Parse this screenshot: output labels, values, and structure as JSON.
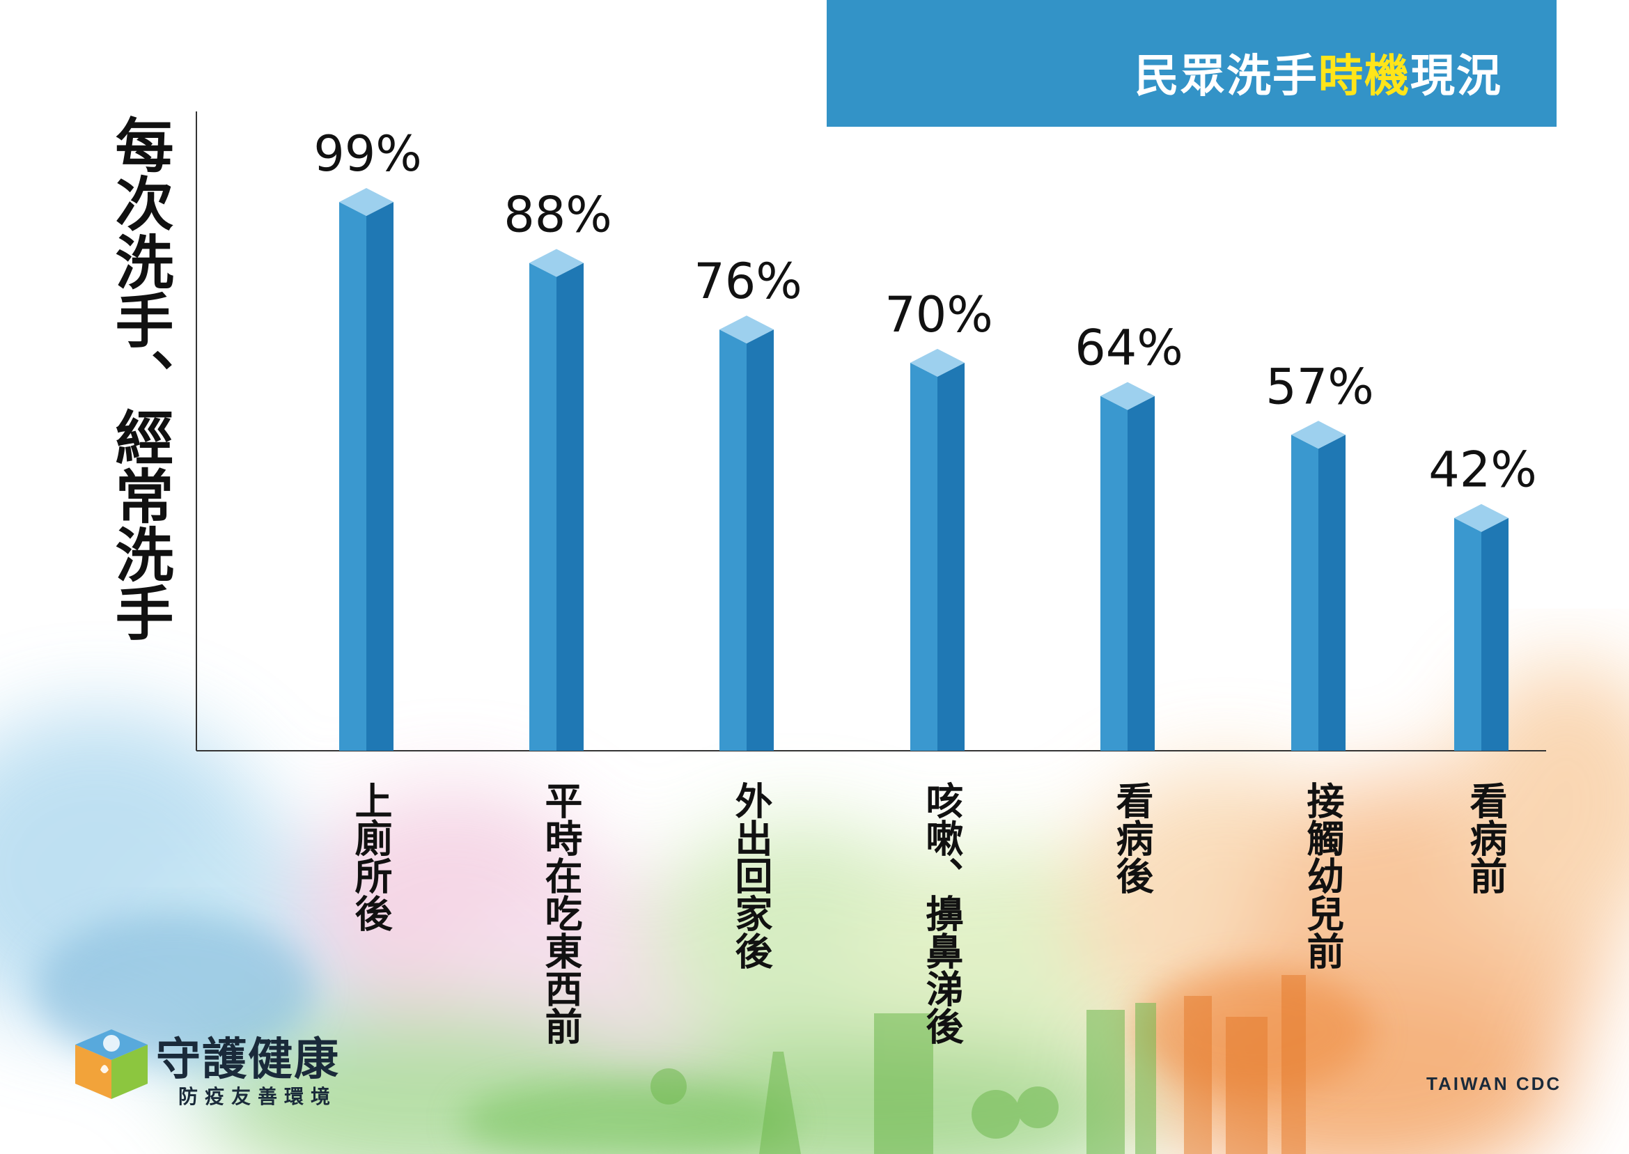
{
  "header": {
    "title_part1": "民眾洗手",
    "title_highlight": "時機",
    "title_part2": "現況",
    "bg_color": "#3393c7",
    "highlight_color": "#ffe51a"
  },
  "chart_data": {
    "type": "bar",
    "title": "民眾洗手時機現況",
    "ylabel": "每次洗手、經常洗手",
    "xlabel": "",
    "ylim": [
      0,
      100
    ],
    "grid": false,
    "categories": [
      "上廁所後",
      "平時在吃東西前",
      "外出回家後",
      "咳嗽、擤鼻涕後",
      "看病後",
      "接觸幼兒前",
      "看病前"
    ],
    "values": [
      99,
      88,
      76,
      70,
      64,
      57,
      42
    ],
    "value_labels": [
      "99%",
      "88%",
      "76%",
      "70%",
      "64%",
      "57%",
      "42%"
    ],
    "bar_color": "#2e8bc4"
  },
  "branding": {
    "logo_title": "守護健康",
    "logo_subtitle": "防疫友善環境",
    "organization": "TAIWAN CDC"
  }
}
